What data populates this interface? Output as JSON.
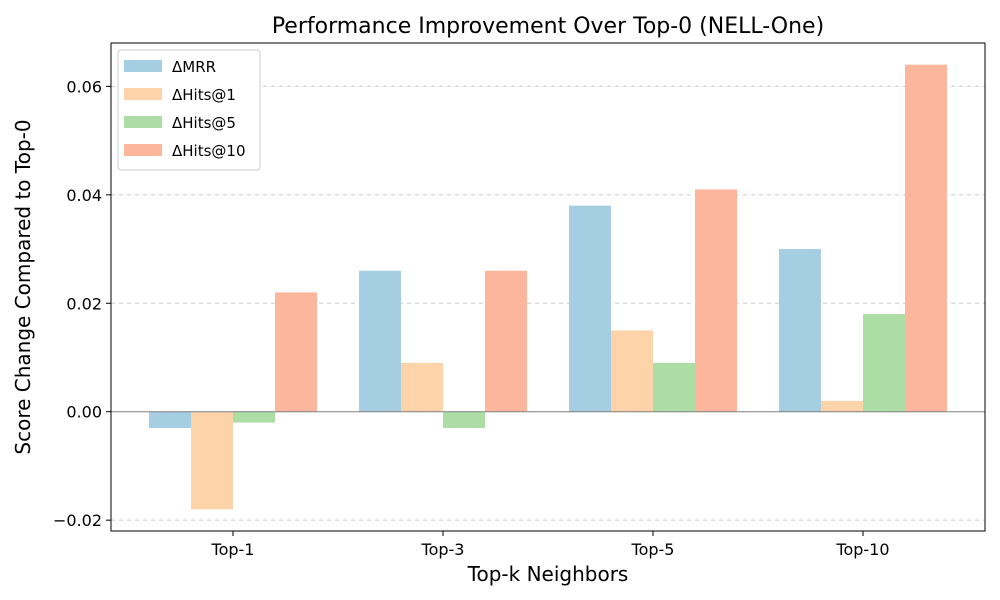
{
  "chart_data": {
    "type": "bar",
    "title": "Performance Improvement Over Top-0 (NELL-One)",
    "xlabel": "Top-k Neighbors",
    "ylabel": "Score Change Compared to Top-0",
    "categories": [
      "Top-1",
      "Top-3",
      "Top-5",
      "Top-10"
    ],
    "series": [
      {
        "name": "ΔMRR",
        "color": "#a6cee3",
        "values": [
          -0.003,
          0.026,
          0.038,
          0.03
        ]
      },
      {
        "name": "ΔHits@1",
        "color": "#fdd3a9",
        "values": [
          -0.018,
          0.009,
          0.015,
          0.002
        ]
      },
      {
        "name": "ΔHits@5",
        "color": "#abdda4",
        "values": [
          -0.002,
          -0.003,
          0.009,
          0.018
        ]
      },
      {
        "name": "ΔHits@10",
        "color": "#fcb69b",
        "values": [
          0.022,
          0.026,
          0.041,
          0.064
        ]
      }
    ],
    "yticks": [
      -0.02,
      0.0,
      0.02,
      0.04,
      0.06
    ],
    "ytick_labels": [
      "−0.02",
      "0.00",
      "0.02",
      "0.04",
      "0.06"
    ],
    "ylim": [
      -0.022,
      0.068
    ],
    "grid": "y-dashed",
    "legend": "top-left"
  }
}
